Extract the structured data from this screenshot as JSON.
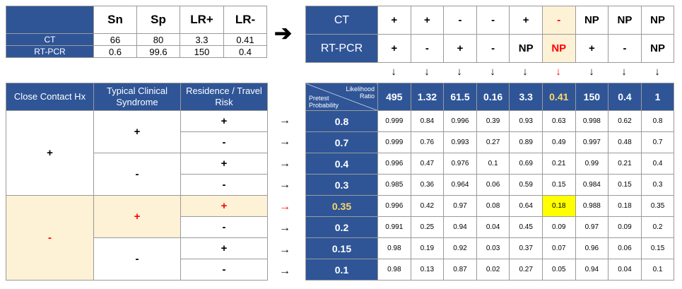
{
  "test_summary": {
    "headers": [
      "",
      "Sn",
      "Sp",
      "LR+",
      "LR-"
    ],
    "rows": [
      {
        "label": "CT",
        "values": [
          "66",
          "80",
          "3.3",
          "0.41"
        ]
      },
      {
        "label": "RT-PCR",
        "values": [
          "0.6",
          "99.6",
          "150",
          "0.4"
        ]
      }
    ]
  },
  "combos": {
    "labels": [
      "CT",
      "RT-PCR"
    ],
    "ct": [
      "+",
      "+",
      "-",
      "-",
      "+",
      "-",
      "NP",
      "NP",
      "NP"
    ],
    "pcr": [
      "+",
      "-",
      "+",
      "-",
      "NP",
      "NP",
      "+",
      "-",
      "NP"
    ],
    "highlight_index": 5
  },
  "arrows": {
    "right": "➔",
    "down": "↓",
    "row": "→"
  },
  "risk": {
    "headers": [
      "Close Contact Hx",
      "Typical Clinical Syndrome",
      "Residence / Travel Risk"
    ],
    "close_contact": [
      "+",
      "-"
    ],
    "syndrome": [
      "+",
      "-",
      "+",
      "-"
    ],
    "travel": [
      "+",
      "-",
      "+",
      "-",
      "+",
      "-",
      "+",
      "-"
    ]
  },
  "prob_table": {
    "corner_top": "Likelihood",
    "corner_ratio": "Ratio",
    "corner_pretest": "Pretest",
    "corner_prob": "Probability",
    "lr": [
      "495",
      "1.32",
      "61.5",
      "0.16",
      "3.3",
      "0.41",
      "150",
      "0.4",
      "1"
    ],
    "rows": [
      {
        "pretest": "0.8",
        "values": [
          "0.999",
          "0.84",
          "0.996",
          "0.39",
          "0.93",
          "0.63",
          "0.998",
          "0.62",
          "0.8"
        ]
      },
      {
        "pretest": "0.7",
        "values": [
          "0.999",
          "0.76",
          "0.993",
          "0.27",
          "0.89",
          "0.49",
          "0.997",
          "0.48",
          "0.7"
        ]
      },
      {
        "pretest": "0.4",
        "values": [
          "0.996",
          "0.47",
          "0.976",
          "0.1",
          "0.69",
          "0.21",
          "0.99",
          "0.21",
          "0.4"
        ]
      },
      {
        "pretest": "0.3",
        "values": [
          "0.985",
          "0.36",
          "0.964",
          "0.06",
          "0.59",
          "0.15",
          "0.984",
          "0.15",
          "0.3"
        ]
      },
      {
        "pretest": "0.35",
        "values": [
          "0.996",
          "0.42",
          "0.97",
          "0.08",
          "0.64",
          "0.18",
          "0.988",
          "0.18",
          "0.35"
        ]
      },
      {
        "pretest": "0.2",
        "values": [
          "0.991",
          "0.25",
          "0.94",
          "0.04",
          "0.45",
          "0.09",
          "0.97",
          "0.09",
          "0.2"
        ]
      },
      {
        "pretest": "0.15",
        "values": [
          "0.98",
          "0.19",
          "0.92",
          "0.03",
          "0.37",
          "0.07",
          "0.96",
          "0.06",
          "0.15"
        ]
      },
      {
        "pretest": "0.1",
        "values": [
          "0.98",
          "0.13",
          "0.87",
          "0.02",
          "0.27",
          "0.05",
          "0.94",
          "0.04",
          "0.1"
        ]
      }
    ],
    "highlight_row": 4,
    "highlight_col": 5
  },
  "colors": {
    "header_blue": "#2f5597",
    "cream": "#fdf1d6",
    "highlight_yellow": "#ffff00",
    "red": "#ff0000",
    "gold_text": "#ffd966"
  }
}
